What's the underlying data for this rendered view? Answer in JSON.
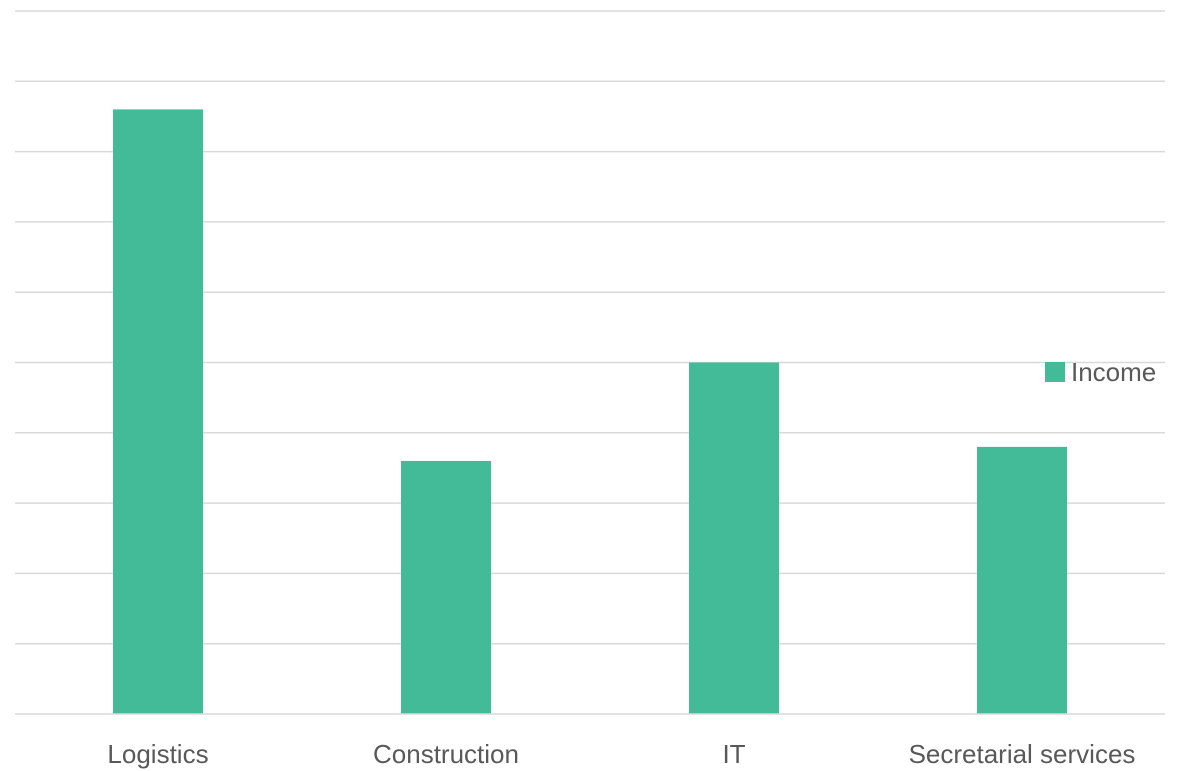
{
  "chart_data": {
    "type": "bar",
    "categories": [
      "Logistics",
      "Construction",
      "IT",
      "Secretarial services"
    ],
    "series": [
      {
        "name": "Income",
        "values": [
          8.6,
          3.6,
          5.0,
          3.8
        ],
        "color": "#43BA98"
      }
    ],
    "ylim": [
      0,
      10
    ],
    "y_gridlines": 10,
    "grid": true,
    "y_tick_labels_shown": false,
    "legend": {
      "placement": "right",
      "entries": [
        "Income"
      ]
    }
  }
}
